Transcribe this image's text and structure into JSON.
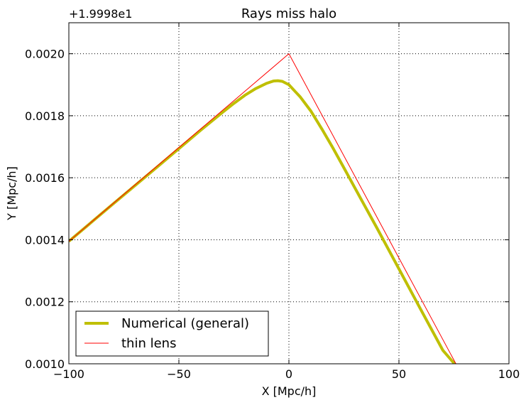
{
  "chart_data": {
    "type": "line",
    "title": "Rays miss halo",
    "xlabel": "X [Mpc/h]",
    "ylabel": "Y [Mpc/h]",
    "offset_label": "+1.9998e1",
    "xlim": [
      -100,
      100
    ],
    "ylim": [
      0.001,
      0.0021
    ],
    "x_ticks": [
      -100,
      -50,
      0,
      50,
      100
    ],
    "x_tick_labels": [
      "−100",
      "−50",
      "0",
      "50",
      "100"
    ],
    "y_ticks": [
      0.001,
      0.0012,
      0.0014,
      0.0016,
      0.0018,
      0.002
    ],
    "y_tick_labels": [
      "0.0010",
      "0.0012",
      "0.0014",
      "0.0016",
      "0.0018",
      "0.0020"
    ],
    "grid": true,
    "legend_position": "lower-left",
    "series": [
      {
        "name": "Numerical (general)",
        "color": "#bfbf00",
        "style": "thick",
        "x": [
          -100,
          -80,
          -60,
          -40,
          -30,
          -25,
          -20,
          -15,
          -10,
          -7,
          -5,
          -3,
          0,
          3,
          5,
          10,
          15,
          20,
          25,
          30,
          40,
          50,
          60,
          70,
          76
        ],
        "y": [
          0.001395,
          0.001515,
          0.001634,
          0.001754,
          0.001812,
          0.00184,
          0.001866,
          0.001888,
          0.001905,
          0.001912,
          0.001913,
          0.001911,
          0.0019,
          0.001877,
          0.001862,
          0.001815,
          0.001757,
          0.001696,
          0.001632,
          0.001567,
          0.001438,
          0.001306,
          0.001174,
          0.001043,
          0.000994
        ]
      },
      {
        "name": "thin lens",
        "color": "#ff0000",
        "style": "thin",
        "x": [
          -100,
          0,
          76.5
        ],
        "y": [
          0.001395,
          0.002,
          0.000992
        ]
      }
    ]
  }
}
